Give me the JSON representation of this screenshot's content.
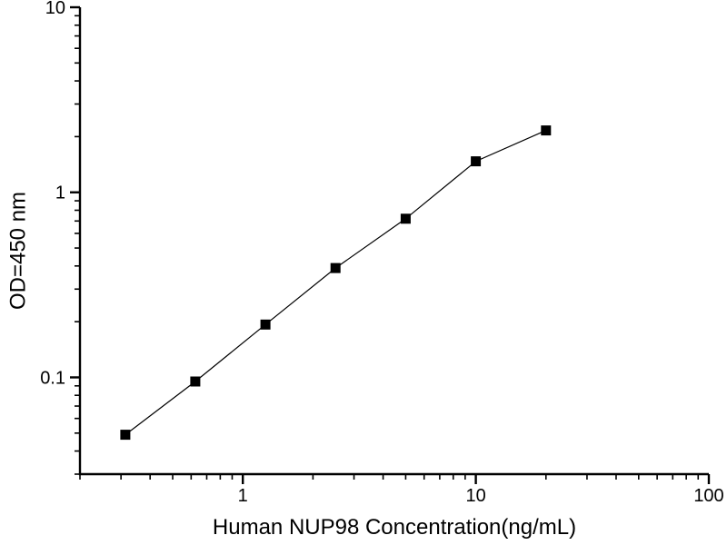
{
  "figure": {
    "background": "#ffffff",
    "axis_color": "#000000"
  },
  "chart_data": {
    "type": "scatter",
    "title": "",
    "xlabel": "Human NUP98 Concentration(ng/mL)",
    "ylabel": "OD=450 nm",
    "xscale": "log",
    "yscale": "log",
    "xlim": [
      0.2,
      100
    ],
    "ylim": [
      0.03,
      10
    ],
    "x_major_ticks": [
      1,
      10,
      100
    ],
    "x_major_tick_labels": [
      "1",
      "10",
      "100"
    ],
    "y_major_ticks": [
      0.1,
      1,
      10
    ],
    "y_major_tick_labels": [
      "0.1",
      "1",
      "10"
    ],
    "grid": false,
    "legend": false,
    "series": [
      {
        "marker": "filled-square",
        "color": "#000000",
        "x": [
          0.313,
          0.625,
          1.25,
          2.5,
          5,
          10,
          20
        ],
        "y": [
          0.049,
          0.095,
          0.193,
          0.39,
          0.72,
          1.47,
          2.16
        ]
      }
    ]
  }
}
